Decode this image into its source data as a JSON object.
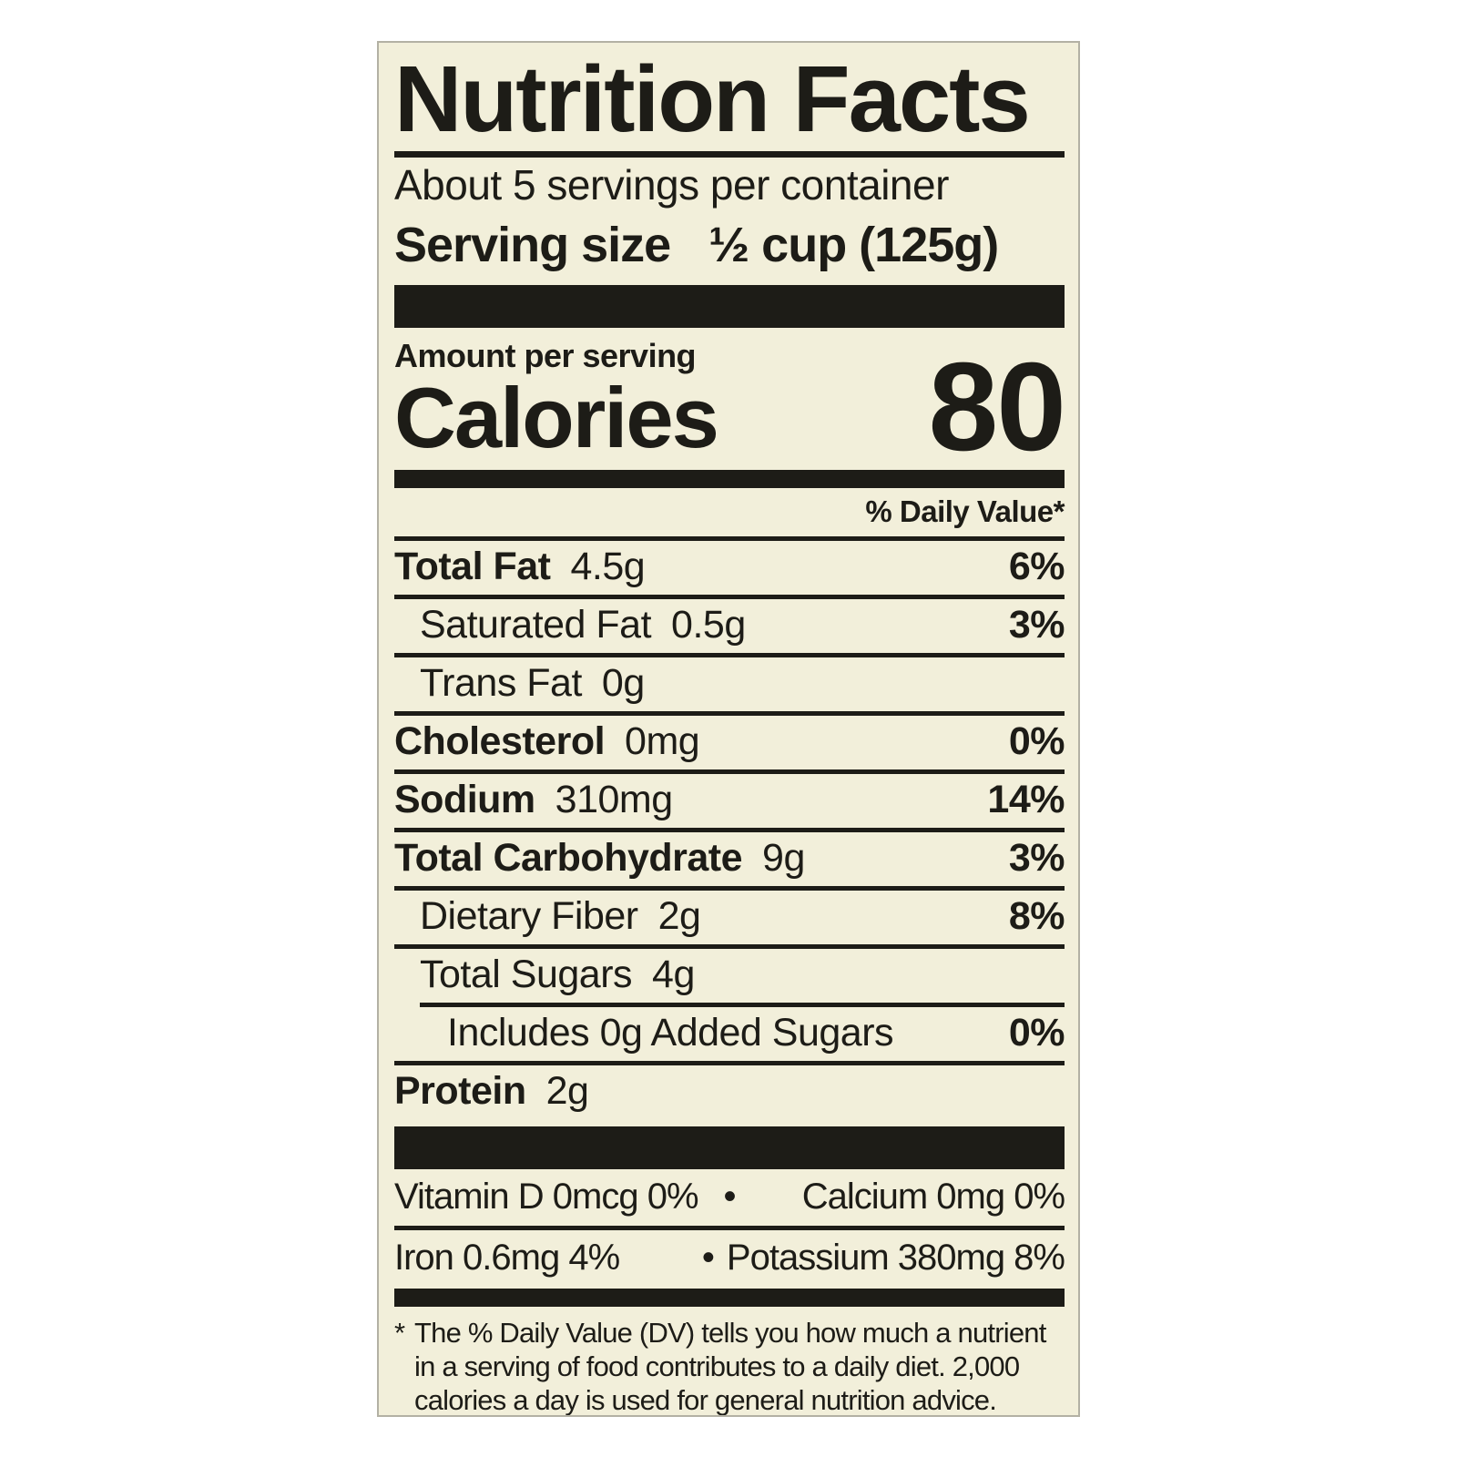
{
  "label": {
    "title": "Nutrition Facts",
    "servings_per_container": "About 5 servings per container",
    "serving_size": {
      "label": "Serving size",
      "value": "½ cup (125g)"
    },
    "amount_per_serving": "Amount per serving",
    "calories": {
      "label": "Calories",
      "value": "80"
    },
    "daily_value_header": "% Daily Value*",
    "nutrients": [
      {
        "name": "Total Fat",
        "amount": "4.5g",
        "dv": "6%"
      },
      {
        "name": "Saturated Fat",
        "amount": "0.5g",
        "dv": "3%"
      },
      {
        "name": "Trans Fat",
        "amount": "0g",
        "dv": ""
      },
      {
        "name": "Cholesterol",
        "amount": "0mg",
        "dv": "0%"
      },
      {
        "name": "Sodium",
        "amount": "310mg",
        "dv": "14%"
      },
      {
        "name": "Total Carbohydrate",
        "amount": "9g",
        "dv": "3%"
      },
      {
        "name": "Dietary Fiber",
        "amount": "2g",
        "dv": "8%"
      },
      {
        "name": "Total Sugars",
        "amount": "4g",
        "dv": ""
      },
      {
        "name": "Includes 0g Added Sugars",
        "amount": "",
        "dv": "0%"
      },
      {
        "name": "Protein",
        "amount": "2g",
        "dv": ""
      }
    ],
    "micronutrients": [
      {
        "left": "Vitamin D  0mcg  0%",
        "bullet": "•",
        "right": "Calcium  0mg  0%"
      },
      {
        "left": "Iron  0.6mg  4%",
        "bullet": "•",
        "right": "Potassium  380mg  8%"
      }
    ],
    "footnote": {
      "marker": "*",
      "lines": [
        "The % Daily Value (DV) tells you how much a nutrient",
        "in a serving of food contributes to a daily diet. 2,000",
        "calories a day is used for general nutrition advice."
      ]
    },
    "colors": {
      "label_background": "#f2efda",
      "text": "#1d1c17",
      "page_background": "#ffffff"
    }
  }
}
